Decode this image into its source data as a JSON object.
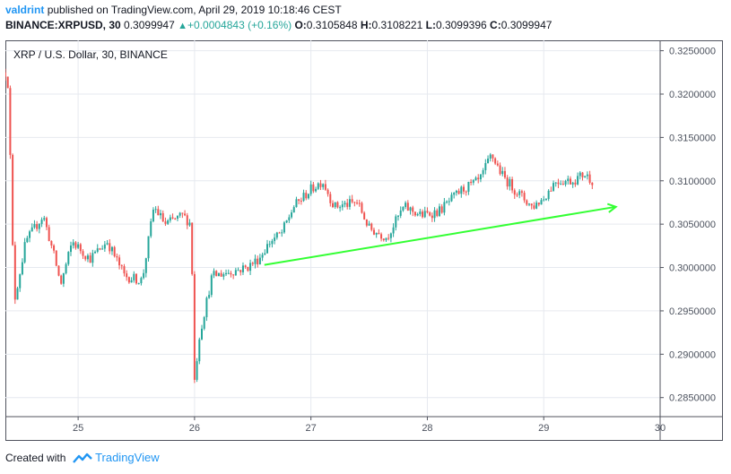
{
  "header": {
    "author": "valdrint",
    "published": "published on TradingView.com, April 29, 2019 10:18:46 CEST",
    "symbol": "BINANCE:XRPUSD, 30",
    "last": "0.3099947",
    "change": "+0.0004843 (+0.16%)",
    "o_label": "O:",
    "o_value": "0.3105848",
    "h_label": "H:",
    "h_value": "0.3108221",
    "l_label": "L:",
    "l_value": "0.3099396",
    "c_label": "C:",
    "c_value": "0.3099947"
  },
  "footer": {
    "created_with": "Created with",
    "brand": "TradingView"
  },
  "colors": {
    "up": "#26a69a",
    "down": "#ef5350",
    "trend": "#33ff33",
    "grid": "#e6e9ef",
    "axis_text": "#4c525e"
  },
  "chart_data": {
    "type": "candlestick",
    "title": "XRP / U.S. Dollar, 30, BINANCE",
    "y_ticks": [
      "0.3250000",
      "0.3200000",
      "0.3150000",
      "0.3100000",
      "0.3050000",
      "0.3000000",
      "0.2950000",
      "0.2900000",
      "0.2850000"
    ],
    "x_ticks": [
      "25",
      "26",
      "27",
      "28",
      "29",
      "30"
    ],
    "y_range": [
      0.2828,
      0.3262
    ],
    "x_range_days": [
      24.375,
      30.0
    ],
    "trendline": {
      "start": {
        "day": 26.6,
        "price": 0.3003
      },
      "end": {
        "day": 29.62,
        "price": 0.307
      },
      "arrow": true
    },
    "candle_interval_minutes": 30,
    "close_anchors": [
      [
        24.375,
        0.3225
      ],
      [
        24.4,
        0.321
      ],
      [
        24.45,
        0.296
      ],
      [
        24.55,
        0.303
      ],
      [
        24.7,
        0.306
      ],
      [
        24.8,
        0.301
      ],
      [
        24.85,
        0.298
      ],
      [
        24.95,
        0.303
      ],
      [
        25.1,
        0.301
      ],
      [
        25.25,
        0.303
      ],
      [
        25.4,
        0.299
      ],
      [
        25.55,
        0.2985
      ],
      [
        25.65,
        0.307
      ],
      [
        25.75,
        0.305
      ],
      [
        25.9,
        0.306
      ],
      [
        25.97,
        0.305
      ],
      [
        26.0,
        0.287
      ],
      [
        26.04,
        0.292
      ],
      [
        26.15,
        0.299
      ],
      [
        26.3,
        0.2995
      ],
      [
        26.45,
        0.3
      ],
      [
        26.55,
        0.301
      ],
      [
        26.65,
        0.303
      ],
      [
        26.75,
        0.304
      ],
      [
        26.85,
        0.307
      ],
      [
        27.0,
        0.309
      ],
      [
        27.1,
        0.31
      ],
      [
        27.2,
        0.307
      ],
      [
        27.4,
        0.3075
      ],
      [
        27.5,
        0.3045
      ],
      [
        27.65,
        0.3035
      ],
      [
        27.8,
        0.307
      ],
      [
        27.95,
        0.306
      ],
      [
        28.1,
        0.3065
      ],
      [
        28.3,
        0.309
      ],
      [
        28.45,
        0.31
      ],
      [
        28.55,
        0.313
      ],
      [
        28.65,
        0.3105
      ],
      [
        28.75,
        0.309
      ],
      [
        28.9,
        0.307
      ],
      [
        29.0,
        0.308
      ],
      [
        29.1,
        0.31
      ],
      [
        29.25,
        0.31
      ],
      [
        29.35,
        0.3108
      ],
      [
        29.42,
        0.31
      ]
    ]
  }
}
